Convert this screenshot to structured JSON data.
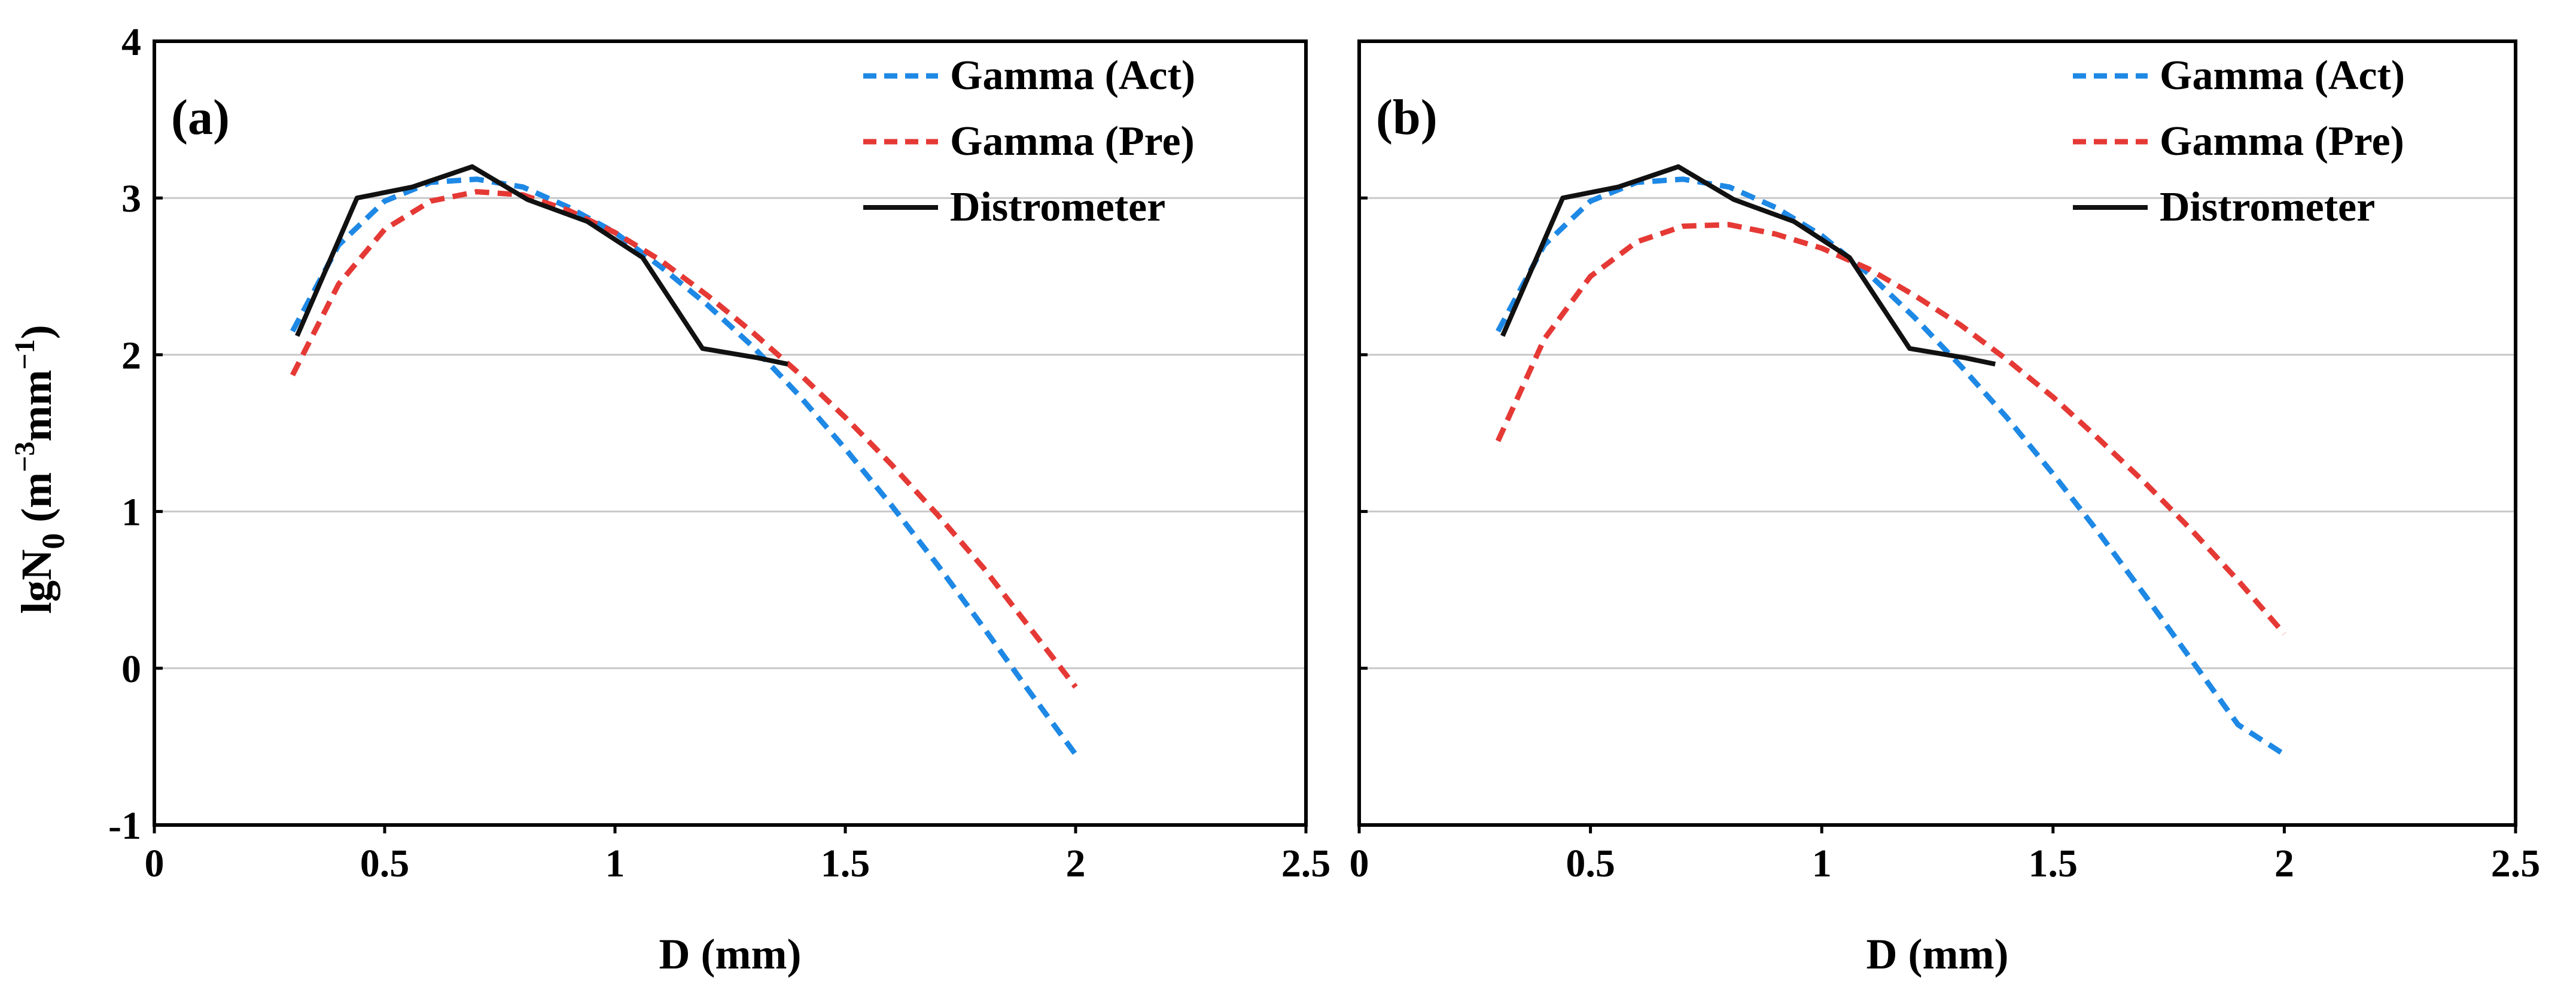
{
  "figure": {
    "ylabel_main": "lgN",
    "ylabel_sub": "0",
    "ylabel_unit_open": " (m",
    "ylabel_exp1": "−3",
    "ylabel_unit_mid": "mm",
    "ylabel_exp2": "−1",
    "ylabel_unit_close": ")"
  },
  "colors": {
    "gamma_act": "#1E88E5",
    "gamma_pre": "#E53935",
    "distrometer": "#111111",
    "grid": "#C8C8C8",
    "axis": "#000000"
  },
  "chart_data": [
    {
      "type": "line",
      "panel": "(a)",
      "xlabel": "D (mm)",
      "ylabel": "lgN0 (m−3mm−1)",
      "xlim": [
        0,
        2.5
      ],
      "ylim": [
        -1,
        4
      ],
      "xticks": [
        0,
        0.5,
        1,
        1.5,
        2,
        2.5
      ],
      "xtick_labels": [
        "0",
        "0.5",
        "1",
        "1.5",
        "2",
        "2.5"
      ],
      "yticks": [
        -1,
        0,
        1,
        2,
        3,
        4
      ],
      "ytick_labels": [
        "-1",
        "0",
        "1",
        "2",
        "3",
        "4"
      ],
      "grid": "horizontal",
      "legend_position": "top-right",
      "series": [
        {
          "name": "Gamma (Act)",
          "style": "dashed",
          "color_key": "gamma_act",
          "x": [
            0.3,
            0.4,
            0.5,
            0.6,
            0.7,
            0.8,
            0.9,
            1.0,
            1.1,
            1.2,
            1.3,
            1.4,
            1.5,
            1.6,
            1.7,
            1.8,
            1.9,
            2.0
          ],
          "y": [
            2.15,
            2.7,
            2.98,
            3.1,
            3.12,
            3.07,
            2.94,
            2.78,
            2.56,
            2.32,
            2.05,
            1.74,
            1.4,
            1.04,
            0.66,
            0.26,
            -0.15,
            -0.55
          ]
        },
        {
          "name": "Gamma (Pre)",
          "style": "dashed",
          "color_key": "gamma_pre",
          "x": [
            0.3,
            0.4,
            0.5,
            0.6,
            0.7,
            0.8,
            0.9,
            1.0,
            1.1,
            1.2,
            1.3,
            1.4,
            1.5,
            1.6,
            1.7,
            1.8,
            1.9,
            2.0
          ],
          "y": [
            1.87,
            2.45,
            2.8,
            2.98,
            3.04,
            3.02,
            2.92,
            2.78,
            2.6,
            2.38,
            2.14,
            1.88,
            1.6,
            1.3,
            0.98,
            0.64,
            0.26,
            -0.12
          ]
        },
        {
          "name": "Distrometer",
          "style": "solid",
          "color_key": "distrometer",
          "x": [
            0.31,
            0.44,
            0.56,
            0.69,
            0.81,
            0.94,
            1.06,
            1.19,
            1.31,
            1.375
          ],
          "y": [
            2.12,
            3.0,
            3.07,
            3.2,
            2.99,
            2.85,
            2.62,
            2.04,
            1.98,
            1.94
          ]
        }
      ]
    },
    {
      "type": "line",
      "panel": "(b)",
      "xlabel": "D (mm)",
      "ylabel": "lgN0 (m−3mm−1)",
      "xlim": [
        0,
        2.5
      ],
      "ylim": [
        -1,
        4
      ],
      "xticks": [
        0,
        0.5,
        1,
        1.5,
        2,
        2.5
      ],
      "xtick_labels": [
        "0",
        "0.5",
        "1",
        "1.5",
        "2",
        "2.5"
      ],
      "yticks": [
        -1,
        0,
        1,
        2,
        3,
        4
      ],
      "ytick_labels": [
        "-1",
        "0",
        "1",
        "2",
        "3",
        "4"
      ],
      "grid": "horizontal",
      "legend_position": "top-right",
      "series": [
        {
          "name": "Gamma (Act)",
          "style": "dashed",
          "color_key": "gamma_act",
          "x": [
            0.3,
            0.4,
            0.5,
            0.6,
            0.7,
            0.8,
            0.9,
            1.0,
            1.1,
            1.2,
            1.3,
            1.4,
            1.5,
            1.6,
            1.7,
            1.8,
            1.9,
            2.0
          ],
          "y": [
            2.15,
            2.7,
            2.98,
            3.1,
            3.12,
            3.07,
            2.94,
            2.76,
            2.52,
            2.24,
            1.93,
            1.6,
            1.24,
            0.86,
            0.46,
            0.05,
            -0.36,
            -0.55
          ]
        },
        {
          "name": "Gamma (Pre)",
          "style": "dashed",
          "color_key": "gamma_pre",
          "x": [
            0.3,
            0.4,
            0.5,
            0.6,
            0.7,
            0.8,
            0.9,
            1.0,
            1.1,
            1.2,
            1.3,
            1.4,
            1.5,
            1.6,
            1.7,
            1.8,
            1.9,
            2.0
          ],
          "y": [
            1.45,
            2.1,
            2.5,
            2.72,
            2.82,
            2.83,
            2.77,
            2.68,
            2.55,
            2.38,
            2.19,
            1.97,
            1.73,
            1.46,
            1.18,
            0.88,
            0.56,
            0.22
          ]
        },
        {
          "name": "Distrometer",
          "style": "solid",
          "color_key": "distrometer",
          "x": [
            0.31,
            0.44,
            0.56,
            0.69,
            0.81,
            0.94,
            1.06,
            1.19,
            1.31,
            1.375
          ],
          "y": [
            2.12,
            3.0,
            3.07,
            3.2,
            2.99,
            2.85,
            2.62,
            2.04,
            1.98,
            1.94
          ]
        }
      ]
    }
  ]
}
